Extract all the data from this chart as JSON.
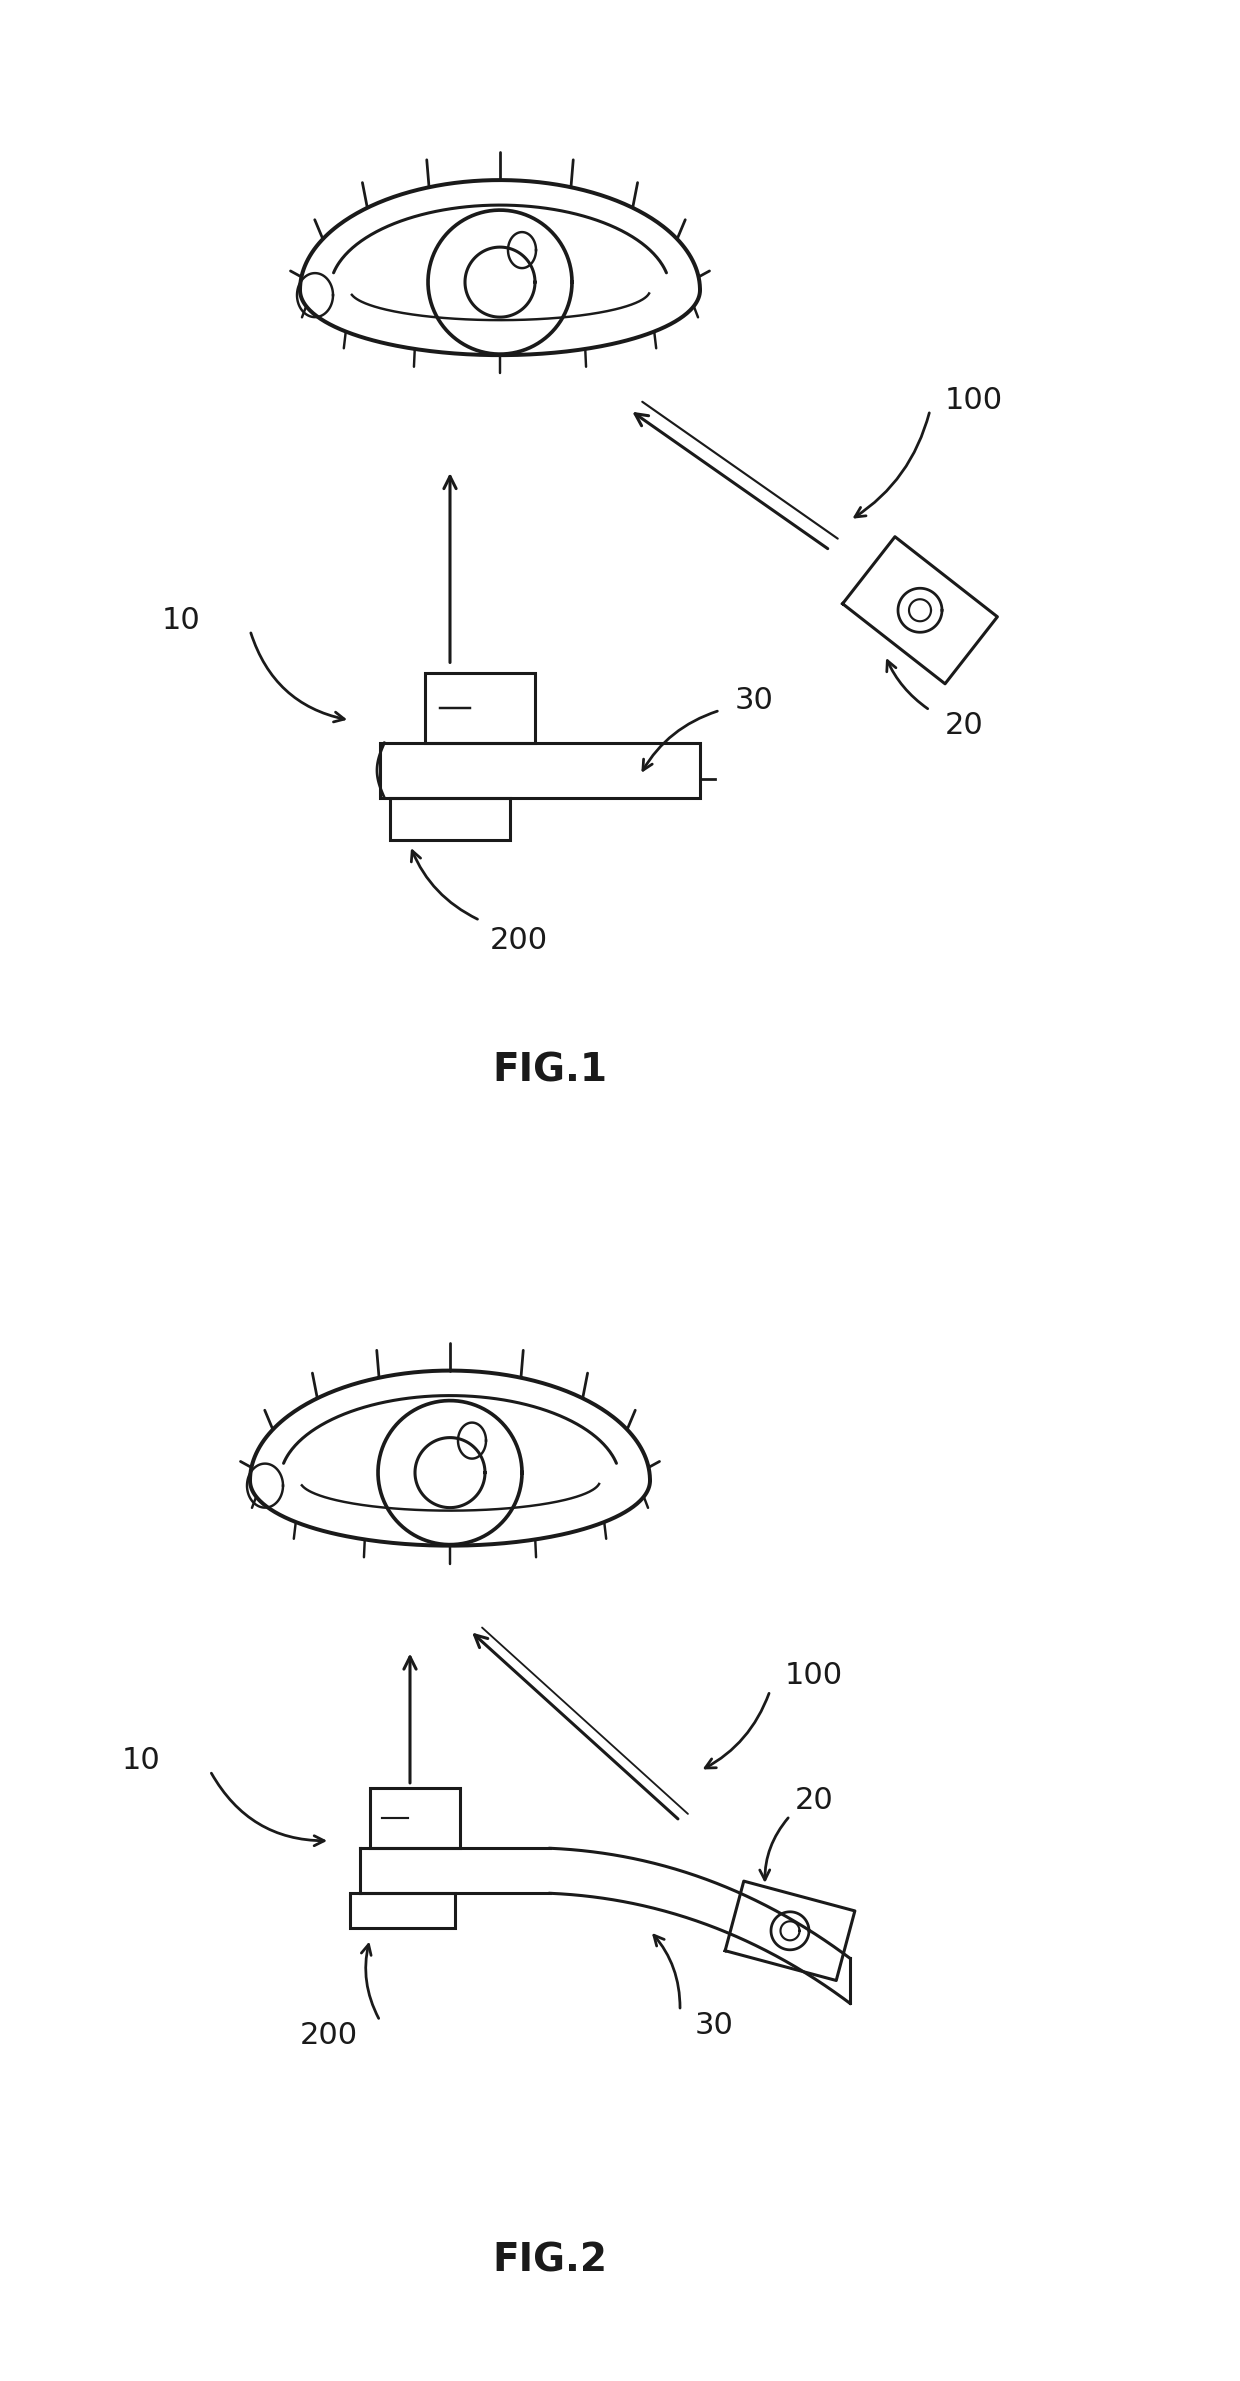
{
  "fig_width": 12.4,
  "fig_height": 23.81,
  "bg_color": "#ffffff",
  "line_color": "#1a1a1a",
  "lw": 2.2,
  "fig1_label": "FIG.1",
  "fig2_label": "FIG.2",
  "label_fontsize": 28,
  "annot_fontsize": 22
}
